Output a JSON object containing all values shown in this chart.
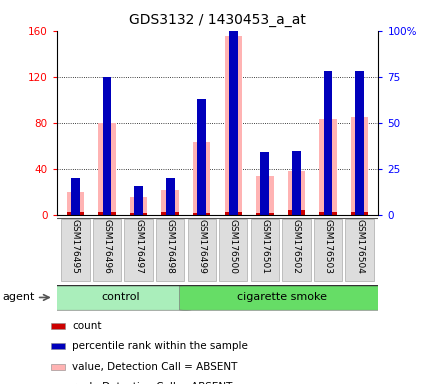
{
  "title": "GDS3132 / 1430453_a_at",
  "samples": [
    "GSM176495",
    "GSM176496",
    "GSM176497",
    "GSM176498",
    "GSM176499",
    "GSM176500",
    "GSM176501",
    "GSM176502",
    "GSM176503",
    "GSM176504"
  ],
  "n_control": 4,
  "n_smoke": 6,
  "value_absent": [
    20,
    80,
    16,
    22,
    63,
    155,
    34,
    38,
    83,
    85
  ],
  "rank_absent_pct": [
    20,
    75,
    16,
    20,
    63,
    128,
    34,
    35,
    78,
    78
  ],
  "count_vals": [
    3,
    3,
    2,
    3,
    2,
    3,
    2,
    4,
    3,
    3
  ],
  "percentile_vals": [
    20,
    75,
    16,
    20,
    63,
    128,
    34,
    35,
    78,
    78
  ],
  "ylim_left": [
    0,
    160
  ],
  "ylim_right": [
    0,
    100
  ],
  "yticks_left": [
    0,
    40,
    80,
    120,
    160
  ],
  "yticks_right": [
    0,
    25,
    50,
    75,
    100
  ],
  "ytick_labels_right": [
    "0",
    "25",
    "50",
    "75",
    "100%"
  ],
  "color_count": "#cc0000",
  "color_percentile": "#0000bb",
  "color_value_absent": "#ffb3b3",
  "color_rank_absent": "#c8c8ff",
  "color_control_bg": "#aaeebb",
  "color_smoke_bg": "#66dd66",
  "legend_items": [
    {
      "label": "count",
      "color": "#cc0000",
      "marker": "s"
    },
    {
      "label": "percentile rank within the sample",
      "color": "#0000bb",
      "marker": "s"
    },
    {
      "label": "value, Detection Call = ABSENT",
      "color": "#ffb3b3",
      "marker": "s"
    },
    {
      "label": "rank, Detection Call = ABSENT",
      "color": "#c8c8ff",
      "marker": "s"
    }
  ],
  "fig_width": 4.35,
  "fig_height": 3.84,
  "dpi": 100
}
